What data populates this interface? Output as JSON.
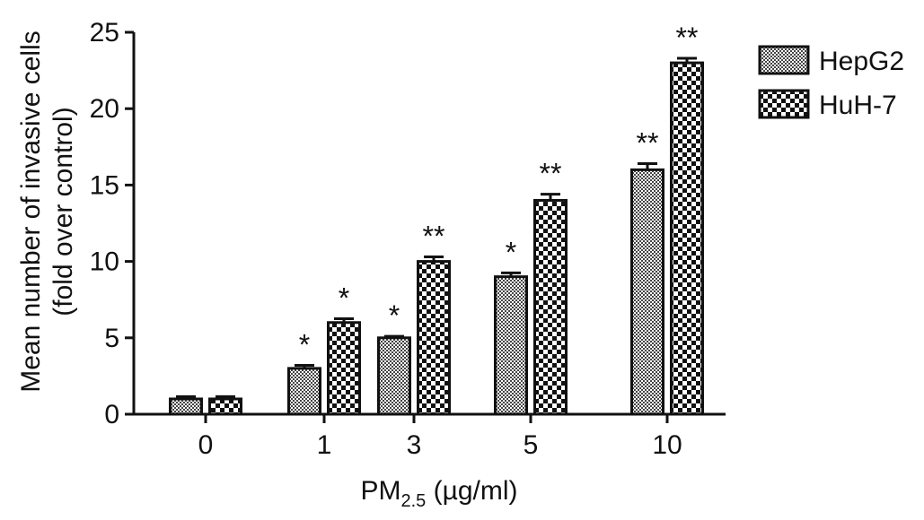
{
  "chart_data": {
    "type": "bar",
    "categories": [
      "0",
      "1",
      "3",
      "5",
      "10"
    ],
    "series": [
      {
        "name": "HepG2",
        "values": [
          1.0,
          3.0,
          5.0,
          9.0,
          16.0
        ],
        "errors": [
          0.15,
          0.2,
          0.1,
          0.25,
          0.4
        ],
        "significance": [
          "",
          "*",
          "*",
          "*",
          "**"
        ]
      },
      {
        "name": "HuH-7",
        "values": [
          1.0,
          6.0,
          10.0,
          14.0,
          23.0
        ],
        "errors": [
          0.15,
          0.25,
          0.3,
          0.4,
          0.3
        ],
        "significance": [
          "",
          "*",
          "**",
          "**",
          "**"
        ]
      }
    ],
    "ylabel_line1": "Mean number of invasive cells",
    "ylabel_line2": "(fold over control)",
    "xlabel_main": "PM",
    "xlabel_sub": "2.5",
    "xlabel_unit": " (µg/ml)",
    "ylim": [
      0,
      25
    ],
    "yticks": [
      0,
      5,
      10,
      15,
      20,
      25
    ],
    "grid": false,
    "legend_position": "top-right",
    "colors": {
      "axis": "#111111",
      "bar_edge": "#111111",
      "pattern_dark": "#111111",
      "pattern_light": "#ffffff"
    },
    "patterns": {
      "HepG2": "fine-checker",
      "HuH-7": "coarse-checker"
    }
  }
}
